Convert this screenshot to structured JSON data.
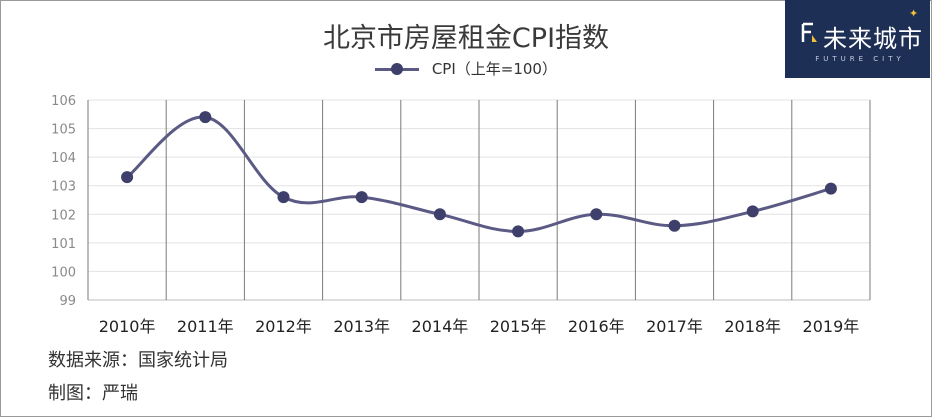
{
  "chart_data": {
    "type": "line",
    "title": "北京市房屋租金CPI指数",
    "categories": [
      "2010年",
      "2011年",
      "2012年",
      "2013年",
      "2014年",
      "2015年",
      "2016年",
      "2017年",
      "2018年",
      "2019年"
    ],
    "series": [
      {
        "name": "CPI（上年=100）",
        "values": [
          103.3,
          105.4,
          102.6,
          102.6,
          102.0,
          101.4,
          102.0,
          101.6,
          102.1,
          102.9
        ]
      }
    ],
    "ylim": [
      99,
      106
    ],
    "yticks": [
      "99",
      "100",
      "101",
      "102",
      "103",
      "104",
      "105",
      "106"
    ],
    "grid": true,
    "legend": "top-center",
    "series_color": "#5a5a84",
    "marker_color": "#3f3f6b"
  },
  "notes": {
    "source": "数据来源：国家统计局",
    "author": "制图：严瑞"
  },
  "logo": {
    "name": "未来城市",
    "sub": "FUTURE CITY",
    "bg_color": "#1e2f55"
  }
}
